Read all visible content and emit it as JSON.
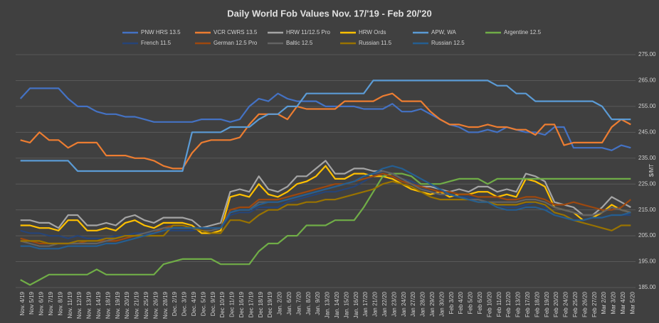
{
  "chart_data": {
    "type": "line",
    "title": "Daily World Fob Values Nov. 17/'19 - Feb 20/'20",
    "y_label": "$/MT",
    "legend": "top",
    "grid": true,
    "ylim": [
      185,
      275
    ],
    "yticks": [
      {
        "value": 185,
        "label": "185.00"
      },
      {
        "value": 195,
        "label": "195.00"
      },
      {
        "value": 205,
        "label": "205.00"
      },
      {
        "value": 215,
        "label": "215.00"
      },
      {
        "value": 225,
        "label": "225.00"
      },
      {
        "value": 235,
        "label": "235.00"
      },
      {
        "value": 245,
        "label": "245.00"
      },
      {
        "value": 255,
        "label": "255.00"
      },
      {
        "value": 265,
        "label": "265.00"
      },
      {
        "value": 275,
        "label": "275.00"
      }
    ],
    "categories": [
      "Nov. 4/19",
      "Nov 5/19",
      "Nov. 6/19",
      "Nov. 7/19",
      "Nov. 8/19",
      "Nov. 11/19",
      "Nov. 12/19",
      "Nov. 13/19",
      "Nov. 14/19",
      "Nov. 18/19",
      "Nov. 19/19",
      "Nov. 20/19",
      "Nov. 21/19",
      "Nov. 25/19",
      "Nov. 26/19",
      "Nov. 28/19",
      "Dec. 2/19",
      "Dec. 3/19",
      "Dec. 4/19",
      "Dec. 5/19",
      "Dec. 9/19",
      "Dec 10/19",
      "Dec 11/19",
      "Dec 16/19",
      "Dec 17/19",
      "Dec 18/19",
      "Dec 19/19",
      "Jan. 2/20",
      "Jan. 6/20",
      "Jan. 7/20",
      "Jan. 8/20",
      "Jan. 9/20",
      "Jan. 13/20",
      "Jan. 14/20",
      "Jan. 15/20",
      "Jan. 16/20",
      "Jan 17/20",
      "Jan 21/20",
      "Jan 22/20",
      "Jan 23/20",
      "Jan 24/20",
      "Jan 27/20",
      "Jan 28/20",
      "Jan 29/20",
      "Jan 30/20",
      "Feb 3/20",
      "Feb 4/20",
      "Feb 5/20",
      "Feb 6/20",
      "Feb 10/20",
      "Feb 11/20",
      "Feb 12/20",
      "Feb 13/20",
      "Feb 17/20",
      "Feb 18/20",
      "Feb 19/20",
      "Feb 20/20",
      "Feb 24/20",
      "Feb 25/20",
      "Feb 26/20",
      "Feb 27/20",
      "Mar 2/20",
      "Mar 3/20",
      "Mar 4/20",
      "Mar 5/20"
    ],
    "series": [
      {
        "name": "PNW HRS 13.5",
        "color": "#4472c4",
        "values": [
          258,
          262,
          262,
          262,
          262,
          258,
          255,
          255,
          253,
          252,
          252,
          251,
          251,
          250,
          249,
          249,
          249,
          249,
          249,
          250,
          250,
          250,
          249,
          250,
          255,
          258,
          257,
          260,
          258,
          257,
          257,
          257,
          255,
          255,
          255,
          255,
          254,
          254,
          254,
          256,
          253,
          253,
          254,
          252,
          250,
          248,
          247,
          245,
          245,
          246,
          245,
          247,
          246,
          245,
          245,
          244,
          247,
          247,
          239,
          239,
          239,
          239,
          238,
          240,
          239
        ]
      },
      {
        "name": "VCR CWRS 13.5",
        "color": "#ed7d31",
        "values": [
          242,
          241,
          245,
          242,
          242,
          239,
          241,
          241,
          241,
          236,
          236,
          236,
          235,
          235,
          234,
          232,
          231,
          231,
          237,
          241,
          242,
          242,
          242,
          243,
          248,
          252,
          252,
          252,
          250,
          255,
          254,
          254,
          254,
          254,
          257,
          257,
          257,
          257,
          259,
          260,
          257,
          257,
          257,
          253,
          250,
          248,
          248,
          247,
          247,
          248,
          247,
          247,
          246,
          246,
          244,
          248,
          248,
          240,
          241,
          241,
          241,
          241,
          247,
          250,
          248
        ]
      },
      {
        "name": "HRW 11/12.5 Pro",
        "color": "#a5a5a5",
        "values": [
          211,
          211,
          210,
          210,
          208,
          213,
          213,
          209,
          209,
          210,
          209,
          212,
          213,
          211,
          210,
          212,
          212,
          212,
          211,
          208,
          209,
          210,
          222,
          223,
          222,
          228,
          223,
          222,
          224,
          228,
          228,
          231,
          234,
          229,
          229,
          231,
          231,
          230,
          230,
          229,
          227,
          226,
          224,
          224,
          223,
          222,
          223,
          222,
          224,
          224,
          222,
          223,
          222,
          229,
          228,
          226,
          218,
          217,
          216,
          213,
          213,
          216,
          220,
          218,
          216
        ]
      },
      {
        "name": "HRW Ords",
        "color": "#ffc000",
        "values": [
          209,
          209,
          208,
          208,
          207,
          211,
          211,
          207,
          207,
          208,
          207,
          210,
          211,
          209,
          208,
          210,
          210,
          210,
          209,
          206,
          206,
          207,
          220,
          221,
          220,
          225,
          221,
          220,
          222,
          225,
          226,
          228,
          232,
          227,
          227,
          229,
          229,
          228,
          228,
          227,
          225,
          223,
          222,
          221,
          222,
          220,
          221,
          221,
          222,
          222,
          220,
          221,
          220,
          227,
          226,
          224,
          216,
          215,
          214,
          211,
          212,
          214,
          217,
          215,
          214
        ]
      },
      {
        "name": "APW, WA",
        "color": "#5b9bd5",
        "values": [
          234,
          234,
          234,
          234,
          234,
          234,
          230,
          230,
          230,
          230,
          230,
          230,
          230,
          230,
          230,
          230,
          230,
          230,
          245,
          245,
          245,
          245,
          247,
          247,
          247,
          250,
          252,
          252,
          255,
          255,
          260,
          260,
          260,
          260,
          260,
          260,
          260,
          265,
          265,
          265,
          265,
          265,
          265,
          265,
          265,
          265,
          265,
          265,
          265,
          265,
          263,
          263,
          260,
          260,
          257,
          257,
          257,
          257,
          257,
          257,
          257,
          255,
          250,
          250,
          250
        ]
      },
      {
        "name": "Argentine 12.5",
        "color": "#70ad47",
        "values": [
          188,
          186,
          188,
          190,
          190,
          190,
          190,
          190,
          192,
          190,
          190,
          190,
          190,
          190,
          190,
          194,
          195,
          196,
          196,
          196,
          196,
          194,
          194,
          194,
          194,
          199,
          202,
          202,
          205,
          205,
          209,
          209,
          209,
          211,
          211,
          211,
          216,
          222,
          228,
          229,
          229,
          228,
          225,
          225,
          225,
          226,
          227,
          227,
          227,
          225,
          227,
          227,
          227,
          227,
          227,
          227,
          227,
          227,
          227,
          227,
          227,
          227,
          227,
          227,
          227
        ]
      },
      {
        "name": "French 11.5",
        "color": "#264478",
        "values": [
          207,
          206,
          206,
          205,
          205,
          204,
          205,
          204,
          204,
          204,
          205,
          205,
          206,
          206,
          206,
          207,
          207,
          207,
          207,
          208,
          208,
          208,
          213,
          214,
          214,
          216,
          216,
          216,
          218,
          219,
          220,
          221,
          222,
          222,
          223,
          224,
          226,
          228,
          230,
          229,
          227,
          226,
          224,
          222,
          221,
          221,
          220,
          220,
          219,
          218,
          217,
          216,
          216,
          217,
          218,
          216,
          214,
          213,
          211,
          211,
          212,
          212,
          213,
          213,
          213
        ]
      },
      {
        "name": "German 12.5 Pro",
        "color": "#9e480e",
        "values": [
          204,
          203,
          202,
          202,
          202,
          202,
          202,
          203,
          203,
          203,
          203,
          204,
          205,
          205,
          206,
          208,
          209,
          209,
          208,
          207,
          207,
          208,
          215,
          216,
          216,
          219,
          219,
          219,
          220,
          221,
          222,
          223,
          224,
          225,
          225,
          226,
          227,
          228,
          229,
          228,
          226,
          225,
          224,
          223,
          222,
          222,
          221,
          221,
          220,
          220,
          220,
          219,
          219,
          220,
          220,
          219,
          217,
          217,
          218,
          217,
          216,
          215,
          215,
          216,
          219
        ]
      },
      {
        "name": "Baltic 12.5",
        "color": "#636363",
        "values": [
          203,
          202,
          201,
          201,
          202,
          202,
          202,
          202,
          202,
          203,
          204,
          205,
          205,
          206,
          207,
          208,
          208,
          208,
          208,
          207,
          207,
          208,
          214,
          215,
          215,
          218,
          218,
          218,
          219,
          220,
          221,
          222,
          223,
          224,
          225,
          226,
          228,
          229,
          230,
          229,
          227,
          225,
          223,
          222,
          221,
          221,
          220,
          219,
          219,
          218,
          218,
          218,
          218,
          219,
          219,
          218,
          216,
          215,
          214,
          213,
          213,
          214,
          216,
          215,
          214
        ]
      },
      {
        "name": "Russian 11.5",
        "color": "#997300",
        "values": [
          203,
          203,
          203,
          202,
          202,
          202,
          203,
          203,
          203,
          204,
          204,
          205,
          205,
          205,
          205,
          205,
          209,
          209,
          208,
          207,
          206,
          206,
          211,
          211,
          210,
          213,
          215,
          215,
          217,
          217,
          218,
          218,
          219,
          219,
          220,
          221,
          222,
          223,
          225,
          226,
          225,
          224,
          222,
          220,
          219,
          219,
          219,
          219,
          218,
          218,
          217,
          217,
          217,
          218,
          218,
          217,
          214,
          213,
          211,
          210,
          209,
          208,
          207,
          209,
          209
        ]
      },
      {
        "name": "Russian 12.5",
        "color": "#255e91",
        "values": [
          201,
          201,
          200,
          200,
          200,
          201,
          201,
          201,
          201,
          202,
          202,
          203,
          204,
          205,
          206,
          207,
          208,
          208,
          208,
          208,
          208,
          208,
          214,
          215,
          215,
          217,
          218,
          218,
          219,
          220,
          221,
          222,
          223,
          224,
          225,
          226,
          228,
          229,
          231,
          232,
          231,
          229,
          227,
          225,
          223,
          221,
          220,
          219,
          218,
          218,
          216,
          215,
          215,
          216,
          216,
          215,
          213,
          212,
          211,
          211,
          212,
          212,
          213,
          213,
          214
        ]
      }
    ]
  }
}
